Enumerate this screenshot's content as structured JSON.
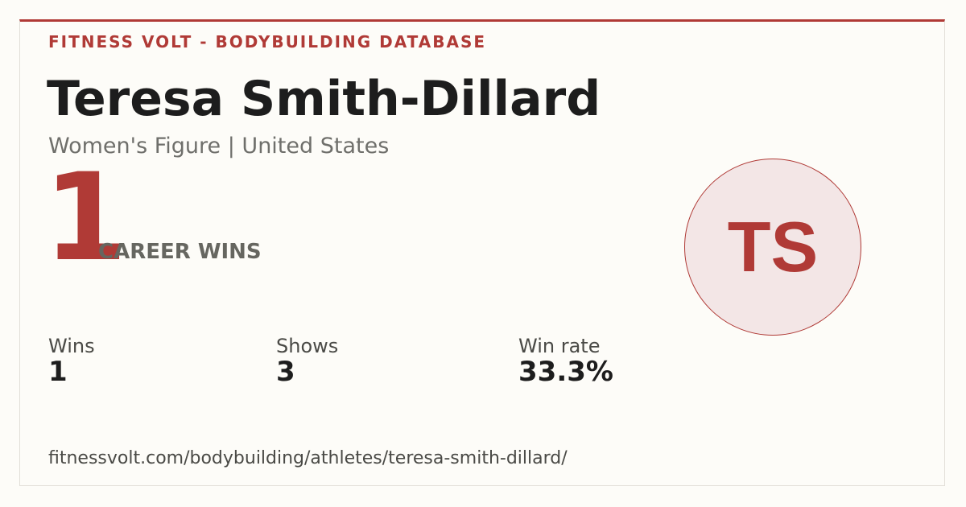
{
  "header": {
    "brand": "FITNESS VOLT - BODYBUILDING DATABASE",
    "name": "Teresa Smith-Dillard",
    "subtitle": "Women's Figure | United States"
  },
  "highlight": {
    "value": "1",
    "label": "CAREER WINS"
  },
  "avatar": {
    "initials": "TS"
  },
  "stats": [
    {
      "label": "Wins",
      "value": "1"
    },
    {
      "label": "Shows",
      "value": "3"
    },
    {
      "label": "Win rate",
      "value": "33.3%"
    }
  ],
  "footer": {
    "url": "fitnessvolt.com/bodybuilding/athletes/teresa-smith-dillard/"
  }
}
